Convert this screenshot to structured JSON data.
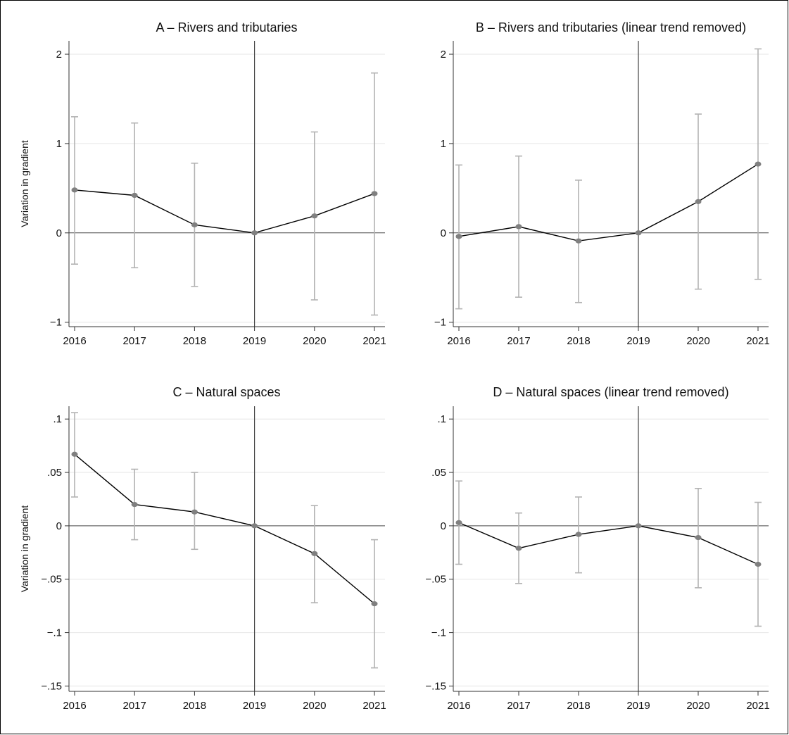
{
  "chart_data": [
    {
      "type": "line",
      "title": "A – Rivers and tributaries",
      "ylabel": "Variation in gradient",
      "xlabel": "",
      "x": [
        2016,
        2017,
        2018,
        2019,
        2020,
        2021
      ],
      "y": [
        0.48,
        0.42,
        0.09,
        0.0,
        0.19,
        0.44
      ],
      "ci_low": [
        -0.35,
        -0.39,
        -0.6,
        0.0,
        -0.75,
        -0.92
      ],
      "ci_high": [
        1.3,
        1.23,
        0.78,
        0.0,
        1.13,
        1.79
      ],
      "ylim": [
        -1.05,
        2.15
      ],
      "xlim": [
        2016,
        2021
      ],
      "yticks": [
        -1,
        0,
        1,
        2
      ],
      "ytick_labels": [
        "−1",
        "0",
        "1",
        "2"
      ],
      "xtick_labels": [
        "2016",
        "2017",
        "2018",
        "2019",
        "2020",
        "2021"
      ],
      "reference_x": 2019,
      "reference_y": 0,
      "grid": true
    },
    {
      "type": "line",
      "title": "B – Rivers and tributaries (linear trend removed)",
      "ylabel": "",
      "xlabel": "",
      "x": [
        2016,
        2017,
        2018,
        2019,
        2020,
        2021
      ],
      "y": [
        -0.04,
        0.07,
        -0.09,
        0.0,
        0.35,
        0.77
      ],
      "ci_low": [
        -0.85,
        -0.72,
        -0.78,
        0.0,
        -0.63,
        -0.52
      ],
      "ci_high": [
        0.76,
        0.86,
        0.59,
        0.0,
        1.33,
        2.06
      ],
      "ylim": [
        -1.05,
        2.15
      ],
      "xlim": [
        2016,
        2021
      ],
      "yticks": [
        -1,
        0,
        1,
        2
      ],
      "ytick_labels": [
        "−1",
        "0",
        "1",
        "2"
      ],
      "xtick_labels": [
        "2016",
        "2017",
        "2018",
        "2019",
        "2020",
        "2021"
      ],
      "reference_x": 2019,
      "reference_y": 0,
      "grid": true
    },
    {
      "type": "line",
      "title": "C – Natural spaces",
      "ylabel": "Variation in gradient",
      "xlabel": "",
      "x": [
        2016,
        2017,
        2018,
        2019,
        2020,
        2021
      ],
      "y": [
        0.067,
        0.02,
        0.013,
        0.0,
        -0.026,
        -0.073
      ],
      "ci_low": [
        0.027,
        -0.013,
        -0.022,
        0.0,
        -0.072,
        -0.133
      ],
      "ci_high": [
        0.106,
        0.053,
        0.05,
        0.0,
        0.019,
        -0.013
      ],
      "ylim": [
        -0.155,
        0.112
      ],
      "xlim": [
        2016,
        2021
      ],
      "yticks": [
        -0.15,
        -0.1,
        -0.05,
        0,
        0.05,
        0.1
      ],
      "ytick_labels": [
        "−.15",
        "−.1",
        "−.05",
        "0",
        ".05",
        ".1"
      ],
      "xtick_labels": [
        "2016",
        "2017",
        "2018",
        "2019",
        "2020",
        "2021"
      ],
      "reference_x": 2019,
      "reference_y": 0,
      "grid": true
    },
    {
      "type": "line",
      "title": "D – Natural spaces (linear trend removed)",
      "ylabel": "",
      "xlabel": "",
      "x": [
        2016,
        2017,
        2018,
        2019,
        2020,
        2021
      ],
      "y": [
        0.003,
        -0.021,
        -0.008,
        0.0,
        -0.011,
        -0.036
      ],
      "ci_low": [
        -0.036,
        -0.054,
        -0.044,
        0.0,
        -0.058,
        -0.094
      ],
      "ci_high": [
        0.042,
        0.012,
        0.027,
        0.0,
        0.035,
        0.022
      ],
      "ylim": [
        -0.155,
        0.112
      ],
      "xlim": [
        2016,
        2021
      ],
      "yticks": [
        -0.15,
        -0.1,
        -0.05,
        0,
        0.05,
        0.1
      ],
      "ytick_labels": [
        "−.15",
        "−.1",
        "−.05",
        "0",
        ".05",
        ".1"
      ],
      "xtick_labels": [
        "2016",
        "2017",
        "2018",
        "2019",
        "2020",
        "2021"
      ],
      "reference_x": 2019,
      "reference_y": 0,
      "grid": true
    }
  ],
  "colors": {
    "series_line": "#000000",
    "point": "#808080",
    "ci_bar": "#b3b3b3",
    "gridline": "#e6e6e6",
    "reference_line": "#444444"
  }
}
